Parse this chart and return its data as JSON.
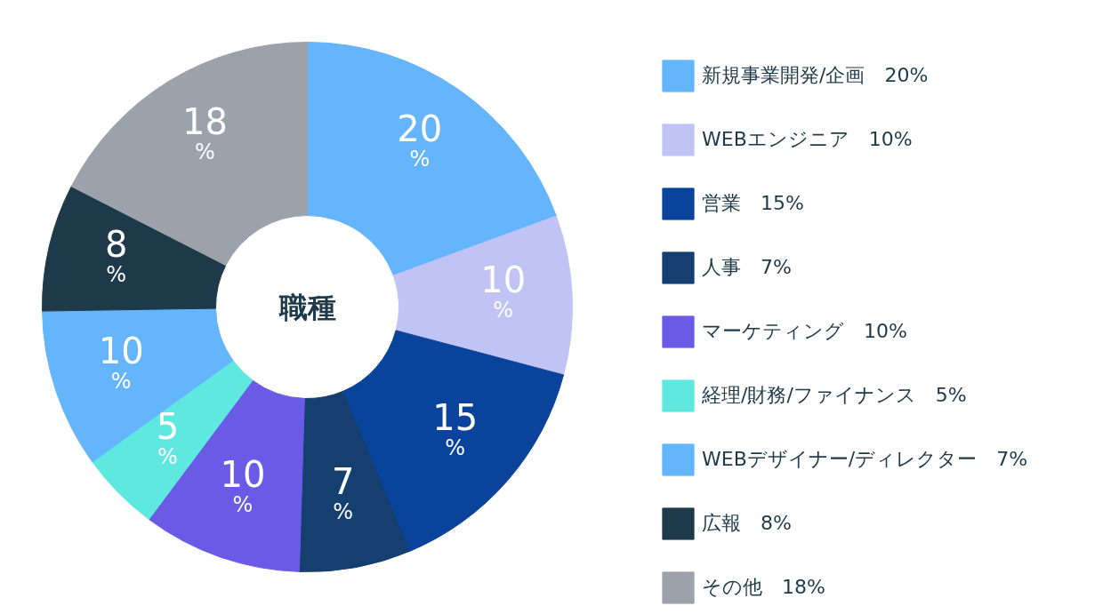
{
  "chart_data": {
    "type": "donut",
    "title": "職種",
    "categories": [
      "新規事業開発/企画　20%",
      "WEBエンジニア　10%",
      "営業　15%",
      "人事　7%",
      "マーケティング　10%",
      "経理/財務/ファイナンス　5%",
      "WEBデザイナー/ディレクター　7%",
      "広報　8%",
      "その他　18%"
    ],
    "values": [
      20,
      10,
      15,
      7,
      10,
      5,
      10,
      8,
      18
    ],
    "colors": [
      "#64b5fc",
      "#c0c4f5",
      "#0a439c",
      "#143f6e",
      "#6a5ae6",
      "#5ee8e0",
      "#64b5fc",
      "#1e3a4a",
      "#9ca2ab"
    ],
    "value_labels": [
      "20%",
      "10%",
      "15%",
      "7%",
      "10%",
      "5%",
      "10%",
      "8%",
      "18%"
    ],
    "legend": "right"
  }
}
